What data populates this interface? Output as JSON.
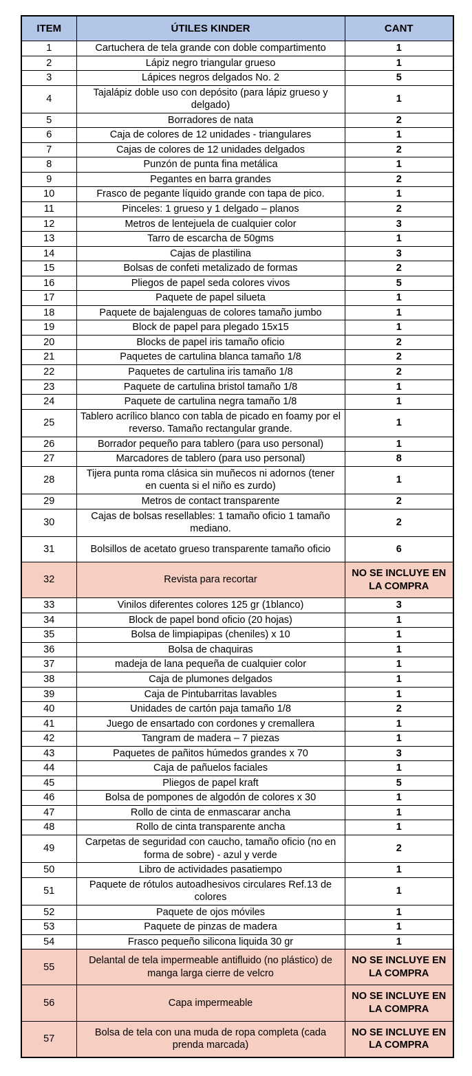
{
  "colors": {
    "header_bg": "#B4C6E7",
    "highlight_bg": "#F6CEC2",
    "border": "#000000",
    "page_bg": "#FFFFFF"
  },
  "table": {
    "headers": {
      "item": "ITEM",
      "name": "ÚTILES KINDER",
      "cant": "CANT"
    },
    "not_included_label": "NO SE INCLUYE EN LA COMPRA",
    "rows": [
      {
        "item": "1",
        "name": "Cartuchera de tela grande con doble compartimento",
        "cant": "1"
      },
      {
        "item": "2",
        "name": "Lápiz negro triangular grueso",
        "cant": "1"
      },
      {
        "item": "3",
        "name": "Lápices negros delgados No. 2",
        "cant": "5"
      },
      {
        "item": "4",
        "name": "Tajalápiz doble uso con depósito (para lápiz grueso y delgado)",
        "cant": "1"
      },
      {
        "item": "5",
        "name": "Borradores de nata",
        "cant": "2"
      },
      {
        "item": "6",
        "name": "Caja de colores de 12 unidades - triangulares",
        "cant": "1"
      },
      {
        "item": "7",
        "name": "Cajas de colores de 12 unidades delgados",
        "cant": "2"
      },
      {
        "item": "8",
        "name": "Punzón de punta fina metálica",
        "cant": "1"
      },
      {
        "item": "9",
        "name": "Pegantes en barra grandes",
        "cant": "2"
      },
      {
        "item": "10",
        "name": "Frasco de pegante líquido grande con tapa de pico.",
        "cant": "1"
      },
      {
        "item": "11",
        "name": "Pinceles: 1 grueso y 1 delgado – planos",
        "cant": "2"
      },
      {
        "item": "12",
        "name": "Metros de lentejuela de cualquier color",
        "cant": "3"
      },
      {
        "item": "13",
        "name": "Tarro de escarcha de 50gms",
        "cant": "1"
      },
      {
        "item": "14",
        "name": "Cajas de plastilina",
        "cant": "3"
      },
      {
        "item": "15",
        "name": "Bolsas de confeti metalizado de formas",
        "cant": "2"
      },
      {
        "item": "16",
        "name": "Pliegos de papel seda colores vivos",
        "cant": "5"
      },
      {
        "item": "17",
        "name": "Paquete de papel silueta",
        "cant": "1"
      },
      {
        "item": "18",
        "name": "Paquete de bajalenguas de colores tamaño jumbo",
        "cant": "1"
      },
      {
        "item": "19",
        "name": "Block de papel para plegado 15x15",
        "cant": "1"
      },
      {
        "item": "20",
        "name": "Blocks de papel iris tamaño oficio",
        "cant": "2"
      },
      {
        "item": "21",
        "name": "Paquetes de cartulina blanca tamaño 1/8",
        "cant": "2"
      },
      {
        "item": "22",
        "name": "Paquetes de cartulina iris tamaño 1/8",
        "cant": "2"
      },
      {
        "item": "23",
        "name": "Paquete de cartulina bristol tamaño 1/8",
        "cant": "1"
      },
      {
        "item": "24",
        "name": "Paquete de cartulina negra tamaño 1/8",
        "cant": "1"
      },
      {
        "item": "25",
        "name": "Tablero acrílico blanco con tabla de picado en foamy por el reverso. Tamaño rectangular grande.",
        "cant": "1"
      },
      {
        "item": "26",
        "name": "Borrador pequeño para tablero (para uso personal)",
        "cant": "1"
      },
      {
        "item": "27",
        "name": "Marcadores de tablero (para uso personal)",
        "cant": "8"
      },
      {
        "item": "28",
        "name": "Tijera punta roma clásica sin muñecos ni adornos (tener en cuenta si el niño es zurdo)",
        "cant": "1"
      },
      {
        "item": "29",
        "name": "Metros de contact transparente",
        "cant": "2"
      },
      {
        "item": "30",
        "name": "Cajas de bolsas resellables: 1 tamaño oficio 1 tamaño mediano.",
        "cant": "2"
      },
      {
        "item": "31",
        "name": "Bolsillos de acetato grueso transparente tamaño oficio",
        "cant": "6",
        "tall": true
      },
      {
        "item": "32",
        "name": "Revista para recortar",
        "cant": "NO SE INCLUYE EN LA COMPRA",
        "highlight": true
      },
      {
        "item": "33",
        "name": "Vinilos diferentes colores 125 gr (1blanco)",
        "cant": "3"
      },
      {
        "item": "34",
        "name": "Block de papel bond oficio (20 hojas)",
        "cant": "1"
      },
      {
        "item": "35",
        "name": "Bolsa de limpiapipas (cheniles) x 10",
        "cant": "1"
      },
      {
        "item": "36",
        "name": "Bolsa de chaquiras",
        "cant": "1"
      },
      {
        "item": "37",
        "name": "madeja de lana pequeña de cualquier color",
        "cant": "1"
      },
      {
        "item": "38",
        "name": "Caja de plumones delgados",
        "cant": "1"
      },
      {
        "item": "39",
        "name": "Caja de Pintubarritas lavables",
        "cant": "1"
      },
      {
        "item": "40",
        "name": "Unidades de cartón paja tamaño 1/8",
        "cant": "2"
      },
      {
        "item": "41",
        "name": "Juego de ensartado con cordones y cremallera",
        "cant": "1"
      },
      {
        "item": "42",
        "name": "Tangram de madera – 7 piezas",
        "cant": "1"
      },
      {
        "item": "43",
        "name": "Paquetes de pañitos húmedos grandes x 70",
        "cant": "3"
      },
      {
        "item": "44",
        "name": "Caja de pañuelos faciales",
        "cant": "1"
      },
      {
        "item": "45",
        "name": "Pliegos de papel kraft",
        "cant": "5"
      },
      {
        "item": "46",
        "name": "Bolsa de pompones de algodón de colores x 30",
        "cant": "1"
      },
      {
        "item": "47",
        "name": "Rollo de cinta de enmascarar ancha",
        "cant": "1"
      },
      {
        "item": "48",
        "name": "Rollo de cinta transparente ancha",
        "cant": "1"
      },
      {
        "item": "49",
        "name": "Carpetas de seguridad con caucho, tamaño oficio (no en forma de sobre) - azul y verde",
        "cant": "2"
      },
      {
        "item": "50",
        "name": "Libro de actividades pasatiempo",
        "cant": "1"
      },
      {
        "item": "51",
        "name": "Paquete de rótulos autoadhesivos circulares Ref.13 de colores",
        "cant": "1"
      },
      {
        "item": "52",
        "name": "Paquete de ojos móviles",
        "cant": "1"
      },
      {
        "item": "53",
        "name": "Paquete de pinzas de madera",
        "cant": "1"
      },
      {
        "item": "54",
        "name": "Frasco pequeño silicona liquida 30 gr",
        "cant": "1"
      },
      {
        "item": "55",
        "name": "Delantal de tela impermeable antifluido (no plástico) de manga larga cierre de velcro",
        "cant": "NO SE INCLUYE EN LA COMPRA",
        "highlight": true
      },
      {
        "item": "56",
        "name": "Capa impermeable",
        "cant": "NO SE INCLUYE EN LA COMPRA",
        "highlight": true
      },
      {
        "item": "57",
        "name": "Bolsa de tela con una muda de ropa completa (cada prenda marcada)",
        "cant": "NO SE INCLUYE EN LA COMPRA",
        "highlight": true
      }
    ]
  }
}
